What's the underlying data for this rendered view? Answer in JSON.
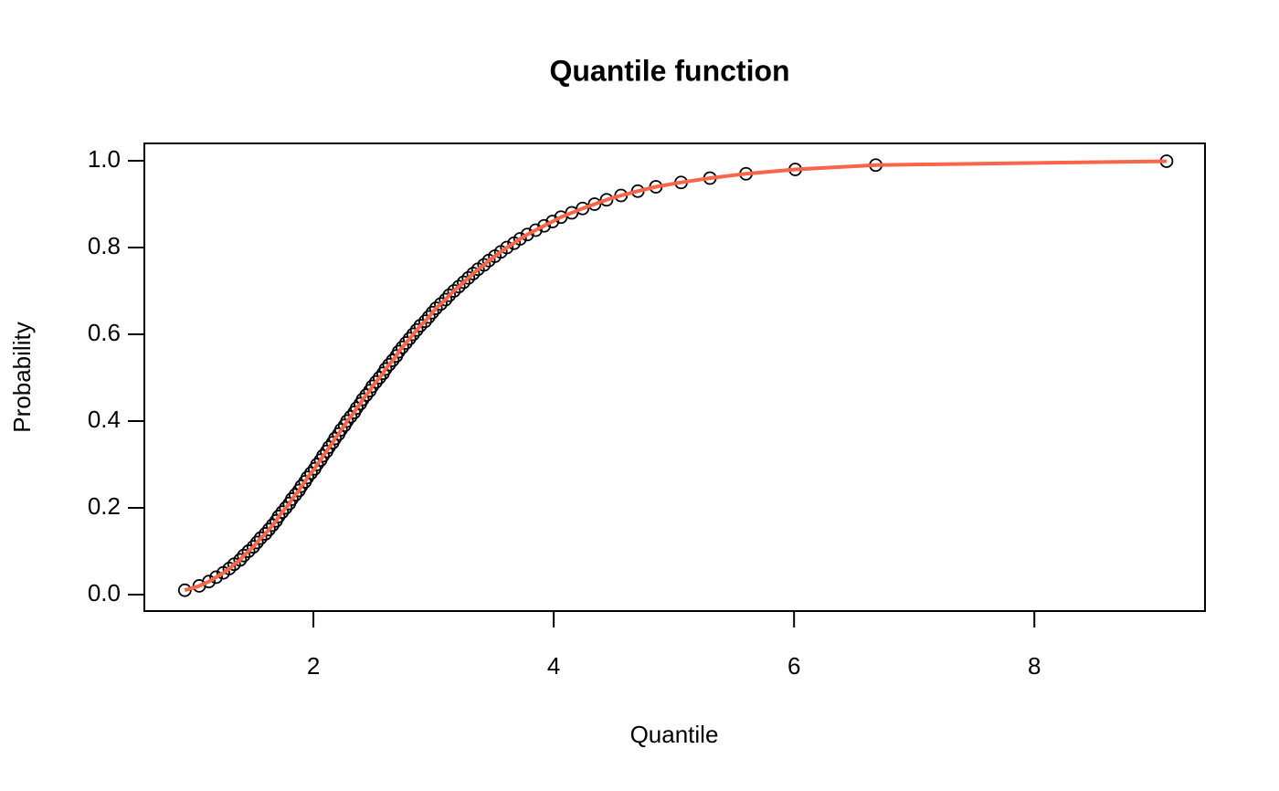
{
  "chart_data": {
    "type": "scatter-line",
    "title": "Quantile function",
    "x_label": "Quantile",
    "y_label": "Probability",
    "xlim": [
      0.593,
      9.42
    ],
    "ylim": [
      -0.038,
      1.04
    ],
    "xticks": [
      2,
      4,
      6,
      8
    ],
    "yticks": [
      {
        "value": 0,
        "label": "0.0"
      },
      0.2,
      0.4,
      0.6,
      0.8,
      {
        "value": 1,
        "label": "1.0"
      }
    ],
    "point_color": "#000000",
    "line_color": "#f86549",
    "x": [
      0.93,
      1.05,
      1.13,
      1.19,
      1.25,
      1.3,
      1.34,
      1.39,
      1.42,
      1.46,
      1.5,
      1.53,
      1.56,
      1.6,
      1.63,
      1.66,
      1.69,
      1.71,
      1.74,
      1.77,
      1.8,
      1.82,
      1.85,
      1.88,
      1.9,
      1.93,
      1.95,
      1.98,
      2.01,
      2.03,
      2.06,
      2.08,
      2.11,
      2.13,
      2.16,
      2.18,
      2.21,
      2.23,
      2.26,
      2.28,
      2.31,
      2.34,
      2.36,
      2.39,
      2.41,
      2.44,
      2.47,
      2.49,
      2.52,
      2.55,
      2.58,
      2.6,
      2.63,
      2.66,
      2.69,
      2.71,
      2.74,
      2.77,
      2.8,
      2.83,
      2.86,
      2.89,
      2.93,
      2.96,
      2.99,
      3.02,
      3.06,
      3.1,
      3.13,
      3.17,
      3.21,
      3.25,
      3.29,
      3.33,
      3.37,
      3.42,
      3.46,
      3.51,
      3.56,
      3.61,
      3.67,
      3.72,
      3.78,
      3.85,
      3.92,
      3.99,
      4.06,
      4.15,
      4.24,
      4.34,
      4.44,
      4.56,
      4.7,
      4.85,
      5.06,
      5.3,
      5.6,
      6.01,
      6.68,
      9.1
    ],
    "y": [
      0.01,
      0.02,
      0.03,
      0.04,
      0.05,
      0.06,
      0.07,
      0.08,
      0.09,
      0.1,
      0.11,
      0.12,
      0.13,
      0.14,
      0.15,
      0.16,
      0.17,
      0.18,
      0.19,
      0.2,
      0.21,
      0.22,
      0.23,
      0.24,
      0.25,
      0.26,
      0.27,
      0.28,
      0.29,
      0.3,
      0.31,
      0.32,
      0.33,
      0.34,
      0.35,
      0.36,
      0.37,
      0.38,
      0.39,
      0.4,
      0.41,
      0.42,
      0.43,
      0.44,
      0.45,
      0.46,
      0.47,
      0.48,
      0.49,
      0.5,
      0.51,
      0.52,
      0.53,
      0.54,
      0.55,
      0.56,
      0.57,
      0.58,
      0.59,
      0.6,
      0.61,
      0.62,
      0.63,
      0.64,
      0.65,
      0.66,
      0.67,
      0.68,
      0.69,
      0.7,
      0.71,
      0.72,
      0.73,
      0.74,
      0.75,
      0.76,
      0.77,
      0.78,
      0.79,
      0.8,
      0.81,
      0.82,
      0.83,
      0.84,
      0.85,
      0.86,
      0.87,
      0.88,
      0.89,
      0.9,
      0.91,
      0.92,
      0.93,
      0.94,
      0.95,
      0.96,
      0.97,
      0.98,
      0.99,
      0.999
    ]
  }
}
